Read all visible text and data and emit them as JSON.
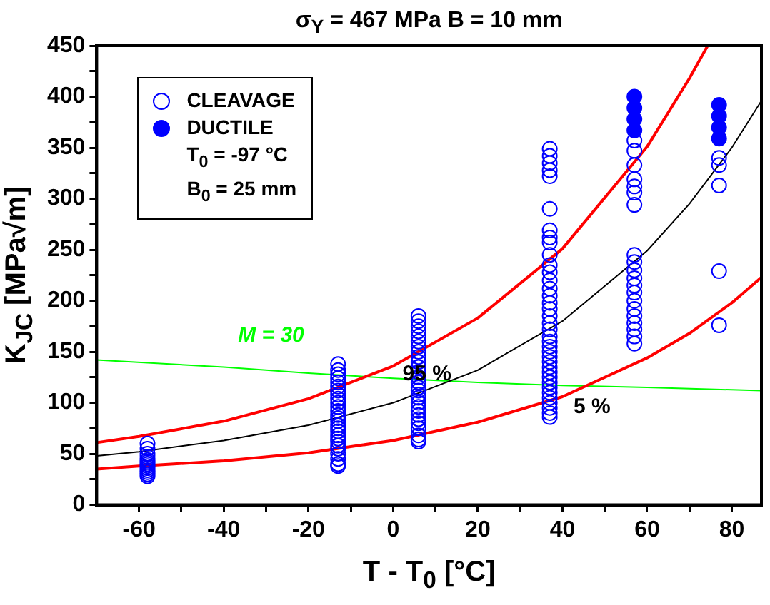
{
  "chart_data": {
    "type": "scatter",
    "title": "σ$_{Y}$ = 467 MPa    B = 10 mm",
    "xlabel": "T - T$_{0}$ [°C]",
    "ylabel": "K$_{JC}$ [MPa√m]",
    "legend": "top left",
    "marker": "circle",
    "grid": false,
    "xlim": [
      -70,
      87
    ],
    "xticks": [
      -60,
      {
        "value": -50,
        "label": null
      },
      -40,
      {
        "value": -30,
        "label": null
      },
      -20,
      {
        "value": -10,
        "label": null
      },
      0,
      {
        "value": 10,
        "label": null
      },
      20,
      {
        "value": 30,
        "label": null
      },
      40,
      {
        "value": 50,
        "label": null
      },
      60,
      {
        "value": 70,
        "label": null
      },
      80
    ],
    "ylim": [
      0,
      450
    ],
    "yticks": [
      0,
      {
        "value": 25,
        "label": null
      },
      50,
      {
        "value": 75,
        "label": null
      },
      100,
      {
        "value": 125,
        "label": null
      },
      150,
      {
        "value": 175,
        "label": null
      },
      200,
      {
        "value": 225,
        "label": null
      },
      250,
      {
        "value": 275,
        "label": null
      },
      300,
      {
        "value": 325,
        "label": null
      },
      350,
      {
        "value": 375,
        "label": null
      },
      400,
      {
        "value": 425,
        "label": null
      },
      450
    ],
    "annotations": [
      "T$_{0}$ = -97 °C",
      "B$_{0}$ = 25 mm",
      {
        "text": "95 %",
        "x": 8,
        "y": 152
      },
      {
        "text": "5 %",
        "x": 47,
        "y": 120
      }
    ],
    "series": [
      {
        "name": "CLEAVAGE",
        "color": "#0000ff",
        "x": [
          -58,
          -58,
          -58,
          -58,
          -58,
          -58,
          -58,
          -58,
          -58,
          -58,
          -58,
          -58,
          -58,
          -13,
          -13,
          -13,
          -13,
          -13,
          -13,
          -13,
          -13,
          -13,
          -13,
          -13,
          -13,
          -13,
          -13,
          -13,
          -13,
          -13,
          -13,
          -13,
          -13,
          -13,
          -13,
          -13,
          -13,
          -13,
          -13,
          -13,
          6,
          6,
          6,
          6,
          6,
          6,
          6,
          6,
          6,
          6,
          6,
          6,
          6,
          6,
          6,
          6,
          6,
          6,
          6,
          6,
          6,
          6,
          6,
          6,
          6,
          6,
          6,
          6,
          37,
          37,
          37,
          37,
          37,
          37,
          37,
          37,
          37,
          37,
          37,
          37,
          37,
          37,
          37,
          37,
          37,
          37,
          37,
          37,
          37,
          37,
          37,
          37,
          37,
          37,
          37,
          37,
          37,
          37,
          37,
          37,
          37,
          37,
          37,
          37,
          37,
          57,
          57,
          57,
          57,
          57,
          57,
          57,
          57,
          57,
          57,
          57,
          57,
          57,
          57,
          57,
          57,
          57,
          57,
          57,
          57,
          77,
          77,
          77,
          77,
          77
        ],
        "values": [
          60,
          55,
          50,
          47,
          44,
          42,
          40,
          38,
          36,
          34,
          32,
          30,
          28,
          138,
          132,
          128,
          124,
          120,
          116,
          112,
          108,
          104,
          100,
          96,
          92,
          88,
          85,
          82,
          78,
          75,
          72,
          68,
          65,
          62,
          58,
          55,
          50,
          45,
          40,
          38,
          185,
          180,
          175,
          170,
          165,
          160,
          155,
          150,
          145,
          140,
          135,
          130,
          125,
          120,
          115,
          112,
          108,
          105,
          100,
          96,
          92,
          88,
          84,
          80,
          75,
          68,
          64,
          62,
          349,
          342,
          335,
          328,
          322,
          290,
          269,
          262,
          257,
          245,
          235,
          228,
          220,
          212,
          205,
          198,
          192,
          185,
          178,
          172,
          165,
          160,
          155,
          150,
          145,
          140,
          135,
          130,
          125,
          120,
          115,
          110,
          105,
          100,
          95,
          90,
          86,
          357,
          347,
          333,
          319,
          312,
          306,
          294,
          245,
          238,
          230,
          222,
          215,
          208,
          200,
          192,
          185,
          178,
          172,
          165,
          158,
          340,
          333,
          313,
          229,
          176
        ]
      },
      {
        "name": "DUCTILE",
        "color": "#0000ff",
        "x": [
          57,
          57,
          57,
          57,
          77,
          77,
          77,
          77
        ],
        "values": [
          400,
          389,
          378,
          367,
          392,
          381,
          370,
          359
        ]
      },
      {
        "type": "line",
        "color": "#000000",
        "marker": "none",
        "x": [
          -70,
          -60,
          -40,
          -20,
          0,
          20,
          40,
          60,
          70,
          80,
          87
        ],
        "values": [
          48,
          52,
          63,
          78,
          100,
          132,
          180,
          249,
          295,
          350,
          396
        ]
      },
      {
        "type": "line",
        "color": "#ff0000",
        "marker": "none",
        "x": [
          -70,
          -60,
          -40,
          -20,
          0,
          20,
          40,
          60,
          70,
          74.3
        ],
        "values": [
          61,
          67,
          82,
          104,
          136,
          183,
          251,
          351,
          418,
          450
        ]
      },
      {
        "type": "line",
        "color": "#ff0000",
        "marker": "none",
        "x": [
          -70,
          -60,
          -40,
          -20,
          0,
          20,
          40,
          60,
          70,
          80,
          87
        ],
        "values": [
          35,
          38,
          43,
          51,
          63,
          81,
          106,
          144,
          168,
          198,
          223
        ]
      },
      {
        "name": "M = 30",
        "type": "line",
        "color": "#00ff00",
        "marker": "none",
        "x": [
          -70,
          -40,
          -20,
          0,
          20,
          40,
          60,
          87
        ],
        "values": [
          142,
          135,
          129,
          124,
          120,
          117,
          115,
          112
        ]
      }
    ]
  }
}
